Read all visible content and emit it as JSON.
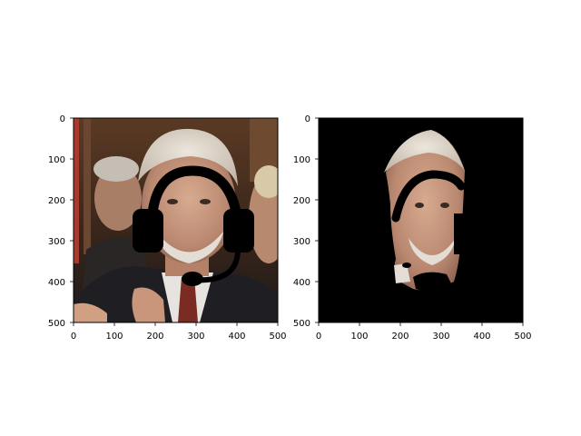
{
  "figure": {
    "background": "#ffffff",
    "axis_color": "#000000",
    "tick_labels": {
      "left": {
        "x": [
          "0",
          "100",
          "200",
          "300",
          "400",
          "500"
        ],
        "y": [
          "0",
          "100",
          "200",
          "300",
          "400",
          "500"
        ]
      },
      "right": {
        "x": [
          "0",
          "100",
          "200",
          "300",
          "400",
          "500"
        ],
        "y": [
          "0",
          "100",
          "200",
          "300",
          "400",
          "500"
        ]
      }
    }
  },
  "panels": {
    "left": {
      "content": "photo-with-headset-overlay",
      "colors": {
        "background_top": "#4a2f1f",
        "suit": "#1f1f23",
        "skin": "#c99d84",
        "hair": "#d9d1c6",
        "headset": "#000000"
      }
    },
    "right": {
      "content": "masked-face-with-headset",
      "colors": {
        "mask": "#000000",
        "skin": "#c99d84",
        "hair": "#d9d1c6"
      }
    }
  }
}
